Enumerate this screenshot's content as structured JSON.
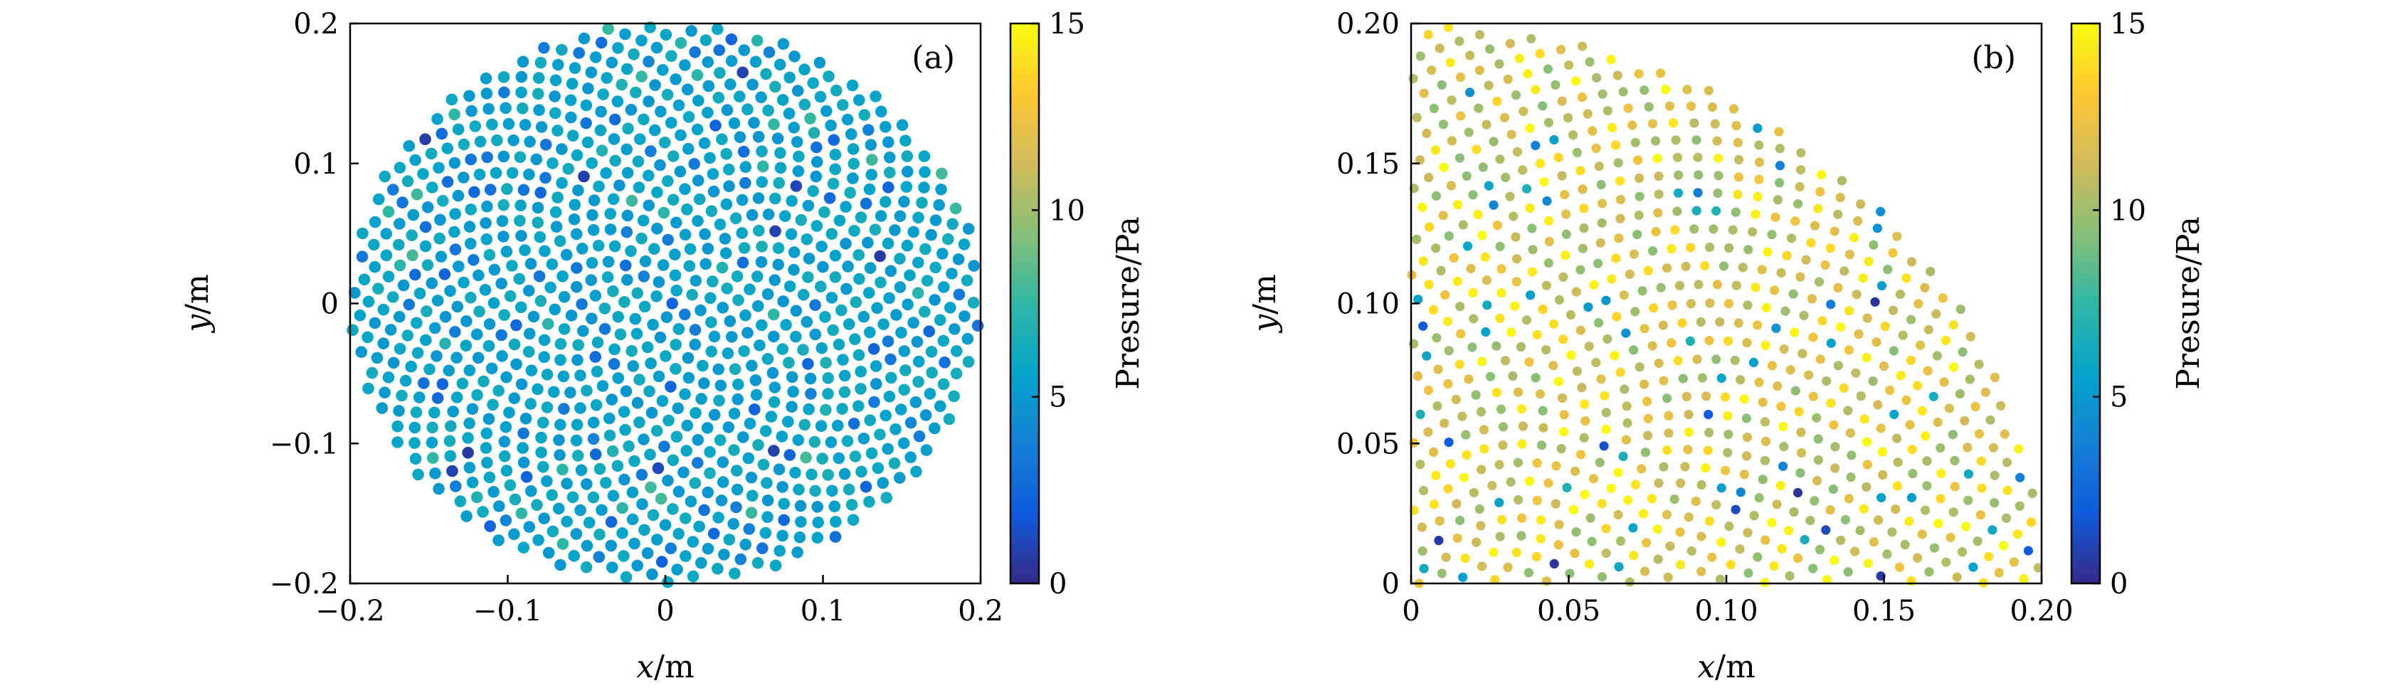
{
  "colormap": {
    "name": "parula-like",
    "stops": [
      "#352a87",
      "#0f5cdd",
      "#1481d6",
      "#06a4ca",
      "#2eb7a4",
      "#87bf77",
      "#d1bb59",
      "#fec832",
      "#f9fb0e"
    ]
  },
  "chart_data": [
    {
      "type": "scatter",
      "panel_label": "(a)",
      "xlabel_var": "x",
      "xlabel_unit": "/m",
      "ylabel_var": "y",
      "ylabel_unit": "/m",
      "xlim": [
        -0.2,
        0.2
      ],
      "ylim": [
        -0.2,
        0.2
      ],
      "xticks": [
        -0.2,
        -0.1,
        0,
        0.1,
        0.2
      ],
      "xtick_labels": [
        "−0.2",
        "−0.1",
        "0",
        "0.1",
        "0.2"
      ],
      "yticks": [
        -0.2,
        -0.1,
        0,
        0.1,
        0.2
      ],
      "ytick_labels": [
        "−0.2",
        "−0.1",
        "0",
        "0.1",
        "0.2"
      ],
      "domain": "disk",
      "radius": 0.2,
      "point_spacing": 0.0115,
      "colorbar": {
        "label": "Presure/Pa",
        "range": [
          0,
          15
        ],
        "ticks": [
          0,
          5,
          10,
          15
        ],
        "tick_labels": [
          "0",
          "5",
          "10",
          "15"
        ]
      },
      "value_model": {
        "base": 5.6,
        "noise": 0.8,
        "low_fraction": 0.12,
        "low_range": [
          2.2,
          4.0
        ],
        "high_fraction": 0.05,
        "high_range": [
          6.5,
          8.0
        ],
        "dark_fraction": 0.012,
        "dark_range": [
          0.5,
          1.5
        ]
      }
    },
    {
      "type": "scatter",
      "panel_label": "(b)",
      "xlabel_var": "x",
      "xlabel_unit": "/m",
      "ylabel_var": "y",
      "ylabel_unit": "/m",
      "xlim": [
        0,
        0.2
      ],
      "ylim": [
        0,
        0.2
      ],
      "xticks": [
        0,
        0.05,
        0.1,
        0.15,
        0.2
      ],
      "xtick_labels": [
        "0",
        "0.05",
        "0.10",
        "0.15",
        "0.20"
      ],
      "yticks": [
        0,
        0.05,
        0.1,
        0.15,
        0.2
      ],
      "ytick_labels": [
        "0",
        "0.05",
        "0.10",
        "0.15",
        "0.20"
      ],
      "domain": "quarter-disk",
      "radius": 0.2,
      "point_spacing": 0.0066,
      "colorbar": {
        "label": "Presure/Pa",
        "range": [
          0,
          15
        ],
        "ticks": [
          0,
          5,
          10,
          15
        ],
        "tick_labels": [
          "0",
          "5",
          "10",
          "15"
        ]
      },
      "value_model": {
        "base": 11.0,
        "noise": 1.6,
        "low_fraction": 0.07,
        "low_range": [
          3.5,
          7.0
        ],
        "high_fraction": 0.22,
        "high_range": [
          13.5,
          15.0
        ],
        "dark_fraction": 0.012,
        "dark_range": [
          0.0,
          2.0
        ]
      }
    }
  ]
}
